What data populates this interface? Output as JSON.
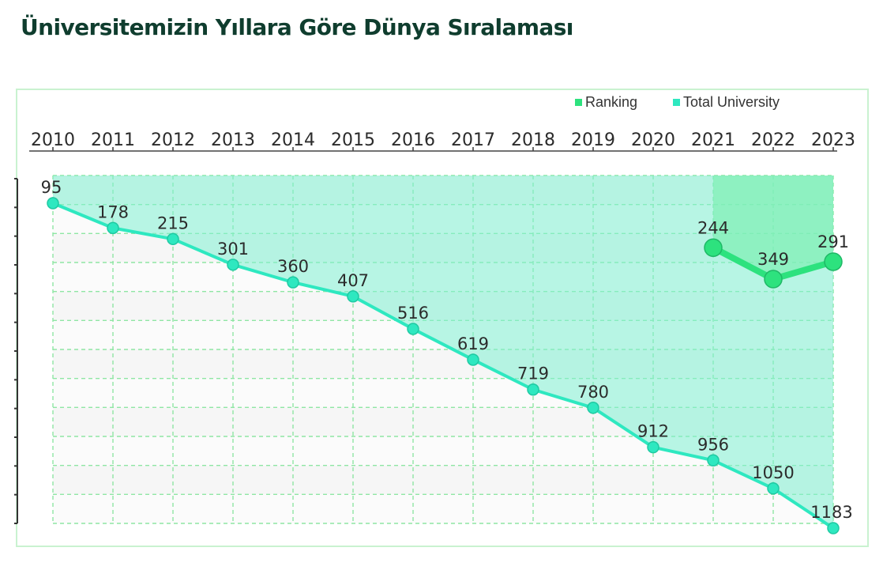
{
  "page": {
    "title": "Üniversitemizin Yıllara Göre Dünya Sıralaması"
  },
  "colors": {
    "title": "#0f3d2e",
    "total_line": "#2ee8c0",
    "total_fill": "#7ff0d2",
    "ranking_line": "#2de27e",
    "ranking_fill": "#7ef0b4",
    "grid": "#8fe6a4"
  },
  "chart_data": {
    "type": "line",
    "x_axis_position": "top",
    "y_axis_inverted": true,
    "y_tick_labels_shown": false,
    "grid": true,
    "legend_position": "top-right",
    "categories": [
      "2010",
      "2011",
      "2012",
      "2013",
      "2014",
      "2015",
      "2016",
      "2017",
      "2018",
      "2019",
      "2020",
      "2021",
      "2022",
      "2023"
    ],
    "series": [
      {
        "name": "Ranking",
        "x": [
          "2021",
          "2022",
          "2023"
        ],
        "values": [
          244,
          349,
          291
        ]
      },
      {
        "name": "Total University",
        "x": [
          "2010",
          "2011",
          "2012",
          "2013",
          "2014",
          "2015",
          "2016",
          "2017",
          "2018",
          "2019",
          "2020",
          "2021",
          "2022",
          "2023"
        ],
        "values": [
          95,
          178,
          215,
          301,
          360,
          407,
          516,
          619,
          719,
          780,
          912,
          956,
          1050,
          1183
        ]
      }
    ],
    "ylim": [
      0,
      1183
    ]
  }
}
